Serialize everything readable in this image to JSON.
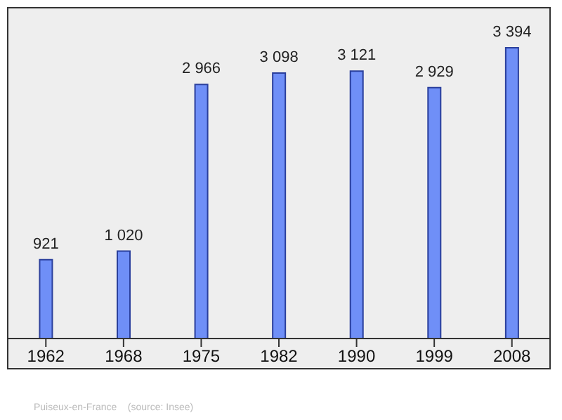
{
  "chart_data": {
    "type": "bar",
    "categories": [
      "1962",
      "1968",
      "1975",
      "1982",
      "1990",
      "1999",
      "2008"
    ],
    "values": [
      921,
      1020,
      2966,
      3098,
      3121,
      2929,
      3394
    ],
    "value_labels": [
      "921",
      "1 020",
      "2 966",
      "3 098",
      "3 121",
      "2 929",
      "3 394"
    ],
    "color": "#6f8ff7",
    "annotations": [
      "Puiseux-en-France    (source: Insee)"
    ]
  }
}
